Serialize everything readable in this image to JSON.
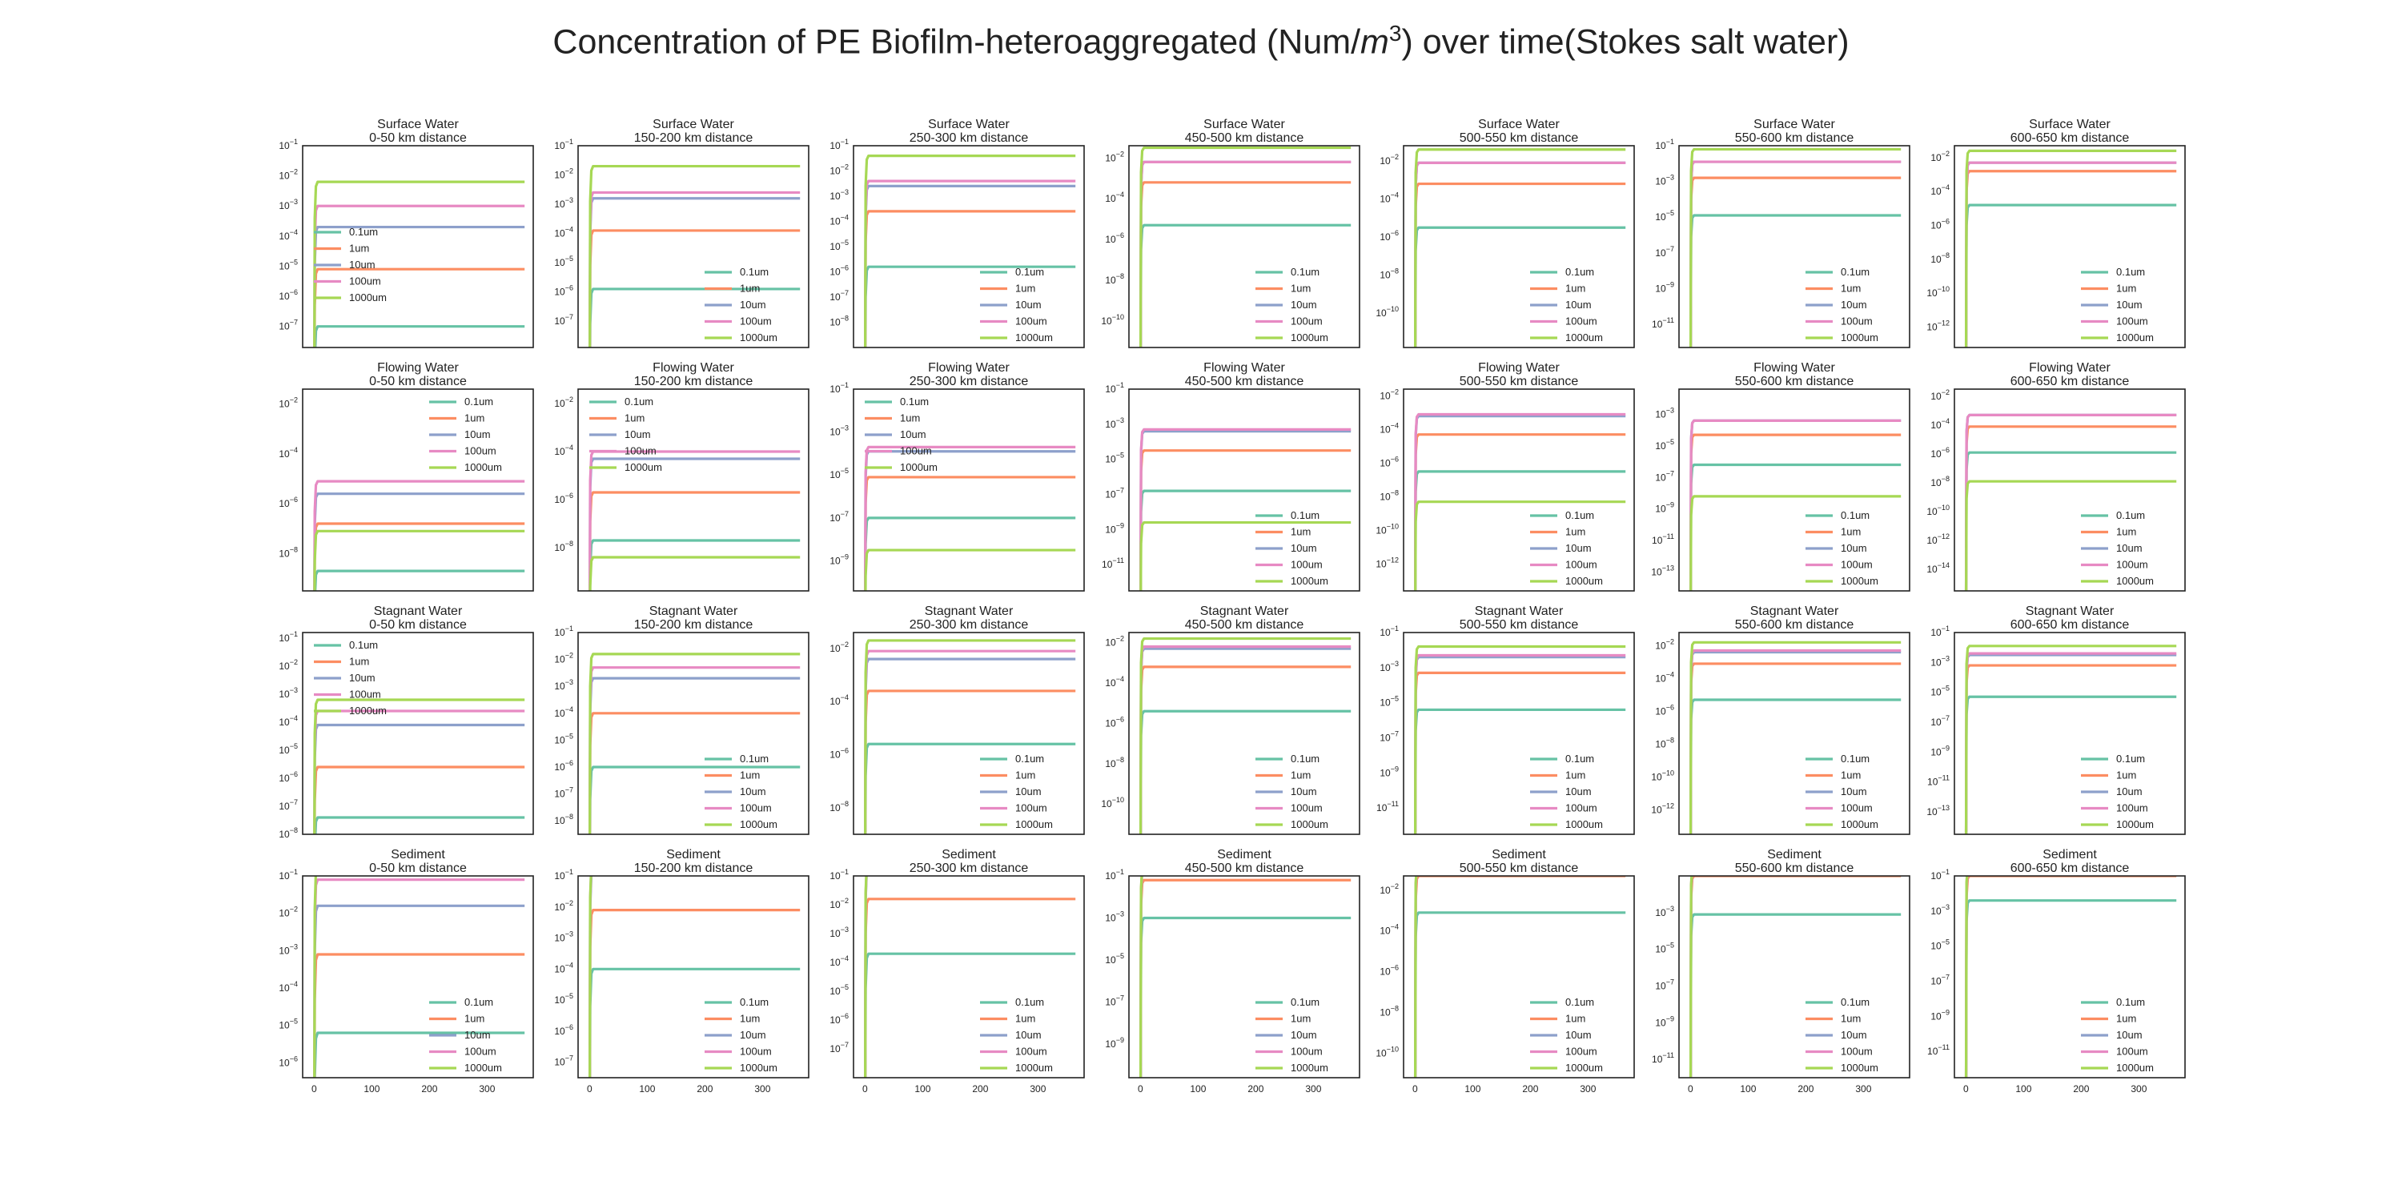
{
  "title": {
    "prefix": "Concentration of PE Biofilm-heteroaggregated (Num/",
    "unit_base": "m",
    "unit_exp": "3",
    "suffix": ") over time(Stokes salt water)"
  },
  "colors": {
    "0.1um": "#66c2a5",
    "1um": "#fc8d62",
    "10um": "#8da0cb",
    "100um": "#e78ac3",
    "1000um": "#a6d854"
  },
  "chart_data": {
    "type": "line",
    "y_scale": "log",
    "xlim": [
      -20,
      380
    ],
    "xticks": [
      0,
      100,
      200,
      300
    ],
    "series_names": [
      "0.1um",
      "1um",
      "10um",
      "100um",
      "1000um"
    ],
    "rows": [
      "Surface Water",
      "Flowing Water",
      "Stagnant Water",
      "Sediment"
    ],
    "cols": [
      "0-50 km distance",
      "150-200 km distance",
      "250-300 km distance",
      "450-500 km distance",
      "500-550 km distance",
      "550-600 km distance",
      "600-650 km distance"
    ],
    "panels": [
      {
        "row": 0,
        "col": 0,
        "ylim": [
          -7.7,
          -1.0
        ],
        "yticks": [
          -7,
          -6,
          -5,
          -4,
          -3,
          -2,
          -1
        ],
        "legend": "lower-left",
        "levels": {
          "0.1um": -7.0,
          "1um": -5.1,
          "10um": -3.7,
          "100um": -3.0,
          "1000um": -2.2
        }
      },
      {
        "row": 0,
        "col": 1,
        "ylim": [
          -7.9,
          -1.0
        ],
        "yticks": [
          -7,
          -6,
          -5,
          -4,
          -3,
          -2,
          -1
        ],
        "legend": "lower-right",
        "levels": {
          "0.1um": -5.9,
          "1um": -3.9,
          "10um": -2.8,
          "100um": -2.6,
          "1000um": -1.7
        }
      },
      {
        "row": 0,
        "col": 2,
        "ylim": [
          -9.0,
          -1.0
        ],
        "yticks": [
          -8,
          -7,
          -6,
          -5,
          -4,
          -3,
          -2,
          -1
        ],
        "legend": "lower-right",
        "levels": {
          "0.1um": -5.8,
          "1um": -3.6,
          "10um": -2.6,
          "100um": -2.4,
          "1000um": -1.4
        }
      },
      {
        "row": 0,
        "col": 3,
        "ylim": [
          -11.3,
          -1.4
        ],
        "yticks": [
          -10,
          -8,
          -6,
          -4,
          -2
        ],
        "legend": "lower-right",
        "levels": {
          "0.1um": -5.3,
          "1um": -3.2,
          "10um": -2.2,
          "100um": -2.2,
          "1000um": -1.5
        }
      },
      {
        "row": 0,
        "col": 4,
        "ylim": [
          -11.8,
          -1.2
        ],
        "yticks": [
          -10,
          -8,
          -6,
          -4,
          -2
        ],
        "legend": "lower-right",
        "levels": {
          "0.1um": -5.5,
          "1um": -3.2,
          "10um": -2.1,
          "100um": -2.1,
          "1000um": -1.4
        }
      },
      {
        "row": 0,
        "col": 5,
        "ylim": [
          -12.3,
          -1.0
        ],
        "yticks": [
          -11,
          -9,
          -7,
          -5,
          -3,
          -1
        ],
        "legend": "lower-right",
        "levels": {
          "0.1um": -4.9,
          "1um": -2.8,
          "10um": -1.9,
          "100um": -1.9,
          "1000um": -1.2
        }
      },
      {
        "row": 0,
        "col": 6,
        "ylim": [
          -13.2,
          -1.3
        ],
        "yticks": [
          -12,
          -10,
          -8,
          -6,
          -4,
          -2
        ],
        "legend": "lower-right",
        "levels": {
          "0.1um": -4.8,
          "1um": -2.8,
          "10um": -2.3,
          "100um": -2.3,
          "1000um": -1.6
        }
      },
      {
        "row": 1,
        "col": 0,
        "ylim": [
          -9.5,
          -1.4
        ],
        "yticks": [
          -8,
          -6,
          -4,
          -2
        ],
        "legend": "top-right",
        "levels": {
          "0.1um": -8.7,
          "1um": -6.8,
          "10um": -5.6,
          "100um": -5.1,
          "1000um": -7.1
        }
      },
      {
        "row": 1,
        "col": 1,
        "ylim": [
          -9.8,
          -1.4
        ],
        "yticks": [
          -8,
          -6,
          -4,
          -2
        ],
        "legend": "top-left",
        "levels": {
          "0.1um": -7.7,
          "1um": -5.7,
          "10um": -4.3,
          "100um": -4.0,
          "1000um": -8.4
        }
      },
      {
        "row": 1,
        "col": 2,
        "ylim": [
          -10.4,
          -1.0
        ],
        "yticks": [
          -9,
          -7,
          -5,
          -3,
          -1
        ],
        "legend": "top-left",
        "levels": {
          "0.1um": -7.0,
          "1um": -5.1,
          "10um": -3.9,
          "100um": -3.7,
          "1000um": -8.5
        }
      },
      {
        "row": 1,
        "col": 3,
        "ylim": [
          -12.5,
          -1.0
        ],
        "yticks": [
          -11,
          -9,
          -7,
          -5,
          -3,
          -1
        ],
        "legend": "lower-right",
        "levels": {
          "0.1um": -6.8,
          "1um": -4.5,
          "10um": -3.4,
          "100um": -3.3,
          "1000um": -8.6
        }
      },
      {
        "row": 1,
        "col": 4,
        "ylim": [
          -13.6,
          -1.6
        ],
        "yticks": [
          -12,
          -10,
          -8,
          -6,
          -4,
          -2
        ],
        "legend": "lower-right",
        "levels": {
          "0.1um": -6.5,
          "1um": -4.3,
          "10um": -3.2,
          "100um": -3.1,
          "1000um": -8.3
        }
      },
      {
        "row": 1,
        "col": 5,
        "ylim": [
          -14.2,
          -1.4
        ],
        "yticks": [
          -13,
          -11,
          -9,
          -7,
          -5,
          -3
        ],
        "legend": "lower-right",
        "levels": {
          "0.1um": -6.2,
          "1um": -4.3,
          "10um": -3.4,
          "100um": -3.4,
          "1000um": -8.2
        }
      },
      {
        "row": 1,
        "col": 6,
        "ylim": [
          -15.5,
          -1.5
        ],
        "yticks": [
          -14,
          -12,
          -10,
          -8,
          -6,
          -4,
          -2
        ],
        "legend": "lower-right",
        "levels": {
          "0.1um": -5.9,
          "1um": -4.1,
          "10um": -3.3,
          "100um": -3.3,
          "1000um": -7.9
        }
      },
      {
        "row": 2,
        "col": 0,
        "ylim": [
          -8.0,
          -0.8
        ],
        "yticks": [
          -8,
          -7,
          -6,
          -5,
          -4,
          -3,
          -2,
          -1
        ],
        "legend": "top-left",
        "levels": {
          "0.1um": -7.4,
          "1um": -5.6,
          "10um": -4.1,
          "100um": -3.6,
          "1000um": -3.2
        }
      },
      {
        "row": 2,
        "col": 1,
        "ylim": [
          -8.5,
          -1.0
        ],
        "yticks": [
          -8,
          -7,
          -6,
          -5,
          -4,
          -3,
          -2,
          -1
        ],
        "legend": "lower-right",
        "levels": {
          "0.1um": -6.0,
          "1um": -4.0,
          "10um": -2.7,
          "100um": -2.3,
          "1000um": -1.8
        }
      },
      {
        "row": 2,
        "col": 2,
        "ylim": [
          -9.0,
          -1.4
        ],
        "yticks": [
          -8,
          -6,
          -4,
          -2
        ],
        "legend": "lower-right",
        "levels": {
          "0.1um": -5.6,
          "1um": -3.6,
          "10um": -2.4,
          "100um": -2.1,
          "1000um": -1.7
        }
      },
      {
        "row": 2,
        "col": 3,
        "ylim": [
          -11.5,
          -1.5
        ],
        "yticks": [
          -10,
          -8,
          -6,
          -4,
          -2
        ],
        "legend": "lower-right",
        "levels": {
          "0.1um": -5.4,
          "1um": -3.2,
          "10um": -2.3,
          "100um": -2.2,
          "1000um": -1.8
        }
      },
      {
        "row": 2,
        "col": 4,
        "ylim": [
          -12.5,
          -1.0
        ],
        "yticks": [
          -11,
          -9,
          -7,
          -5,
          -3,
          -1
        ],
        "legend": "lower-right",
        "levels": {
          "0.1um": -5.4,
          "1um": -3.3,
          "10um": -2.4,
          "100um": -2.3,
          "1000um": -1.8
        }
      },
      {
        "row": 2,
        "col": 5,
        "ylim": [
          -13.5,
          -1.2
        ],
        "yticks": [
          -12,
          -10,
          -8,
          -6,
          -4,
          -2
        ],
        "legend": "lower-right",
        "levels": {
          "0.1um": -5.3,
          "1um": -3.1,
          "10um": -2.4,
          "100um": -2.3,
          "1000um": -1.8
        }
      },
      {
        "row": 2,
        "col": 6,
        "ylim": [
          -14.5,
          -1.0
        ],
        "yticks": [
          -13,
          -11,
          -9,
          -7,
          -5,
          -3,
          -1
        ],
        "legend": "lower-right",
        "levels": {
          "0.1um": -5.3,
          "1um": -3.2,
          "10um": -2.5,
          "100um": -2.4,
          "1000um": -1.9
        }
      },
      {
        "row": 3,
        "col": 0,
        "ylim": [
          -6.4,
          -1.0
        ],
        "yticks": [
          -6,
          -5,
          -4,
          -3,
          -2,
          -1
        ],
        "legend": "lower-right",
        "levels": {
          "0.1um": -5.2,
          "1um": -3.1,
          "10um": -1.8,
          "100um": -1.1,
          "1000um": -0.7
        }
      },
      {
        "row": 3,
        "col": 1,
        "ylim": [
          -7.5,
          -1.0
        ],
        "yticks": [
          -7,
          -6,
          -5,
          -4,
          -3,
          -2,
          -1
        ],
        "legend": "lower-right",
        "levels": {
          "0.1um": -4.0,
          "1um": -2.1,
          "10um": -0.8,
          "100um": -0.6,
          "1000um": -0.5
        }
      },
      {
        "row": 3,
        "col": 2,
        "ylim": [
          -8.0,
          -1.0
        ],
        "yticks": [
          -7,
          -6,
          -5,
          -4,
          -3,
          -2,
          -1
        ],
        "legend": "lower-right",
        "levels": {
          "0.1um": -3.7,
          "1um": -1.8,
          "10um": -0.6,
          "100um": -0.5,
          "1000um": -0.4
        }
      },
      {
        "row": 3,
        "col": 3,
        "ylim": [
          -10.6,
          -1.0
        ],
        "yticks": [
          -9,
          -7,
          -5,
          -3,
          -1
        ],
        "legend": "lower-right",
        "levels": {
          "0.1um": -3.0,
          "1um": -1.2,
          "10um": -0.6,
          "100um": -0.5,
          "1000um": -0.4
        }
      },
      {
        "row": 3,
        "col": 4,
        "ylim": [
          -11.2,
          -1.3
        ],
        "yticks": [
          -10,
          -8,
          -6,
          -4,
          -2
        ],
        "legend": "lower-right",
        "levels": {
          "0.1um": -3.1,
          "1um": -1.3,
          "10um": -0.7,
          "100um": -0.6,
          "1000um": -0.5
        }
      },
      {
        "row": 3,
        "col": 5,
        "ylim": [
          -12.0,
          -1.0
        ],
        "yticks": [
          -11,
          -9,
          -7,
          -5,
          -3
        ],
        "legend": "lower-right",
        "levels": {
          "0.1um": -3.1,
          "1um": -1.0,
          "10um": -0.5,
          "100um": -0.4,
          "1000um": -0.3
        }
      },
      {
        "row": 3,
        "col": 6,
        "ylim": [
          -12.5,
          -1.0
        ],
        "yticks": [
          -11,
          -9,
          -7,
          -5,
          -3,
          -1
        ],
        "legend": "lower-right",
        "levels": {
          "0.1um": -2.4,
          "1um": -1.0,
          "10um": -0.4,
          "100um": -0.3,
          "1000um": -0.2
        }
      }
    ]
  }
}
